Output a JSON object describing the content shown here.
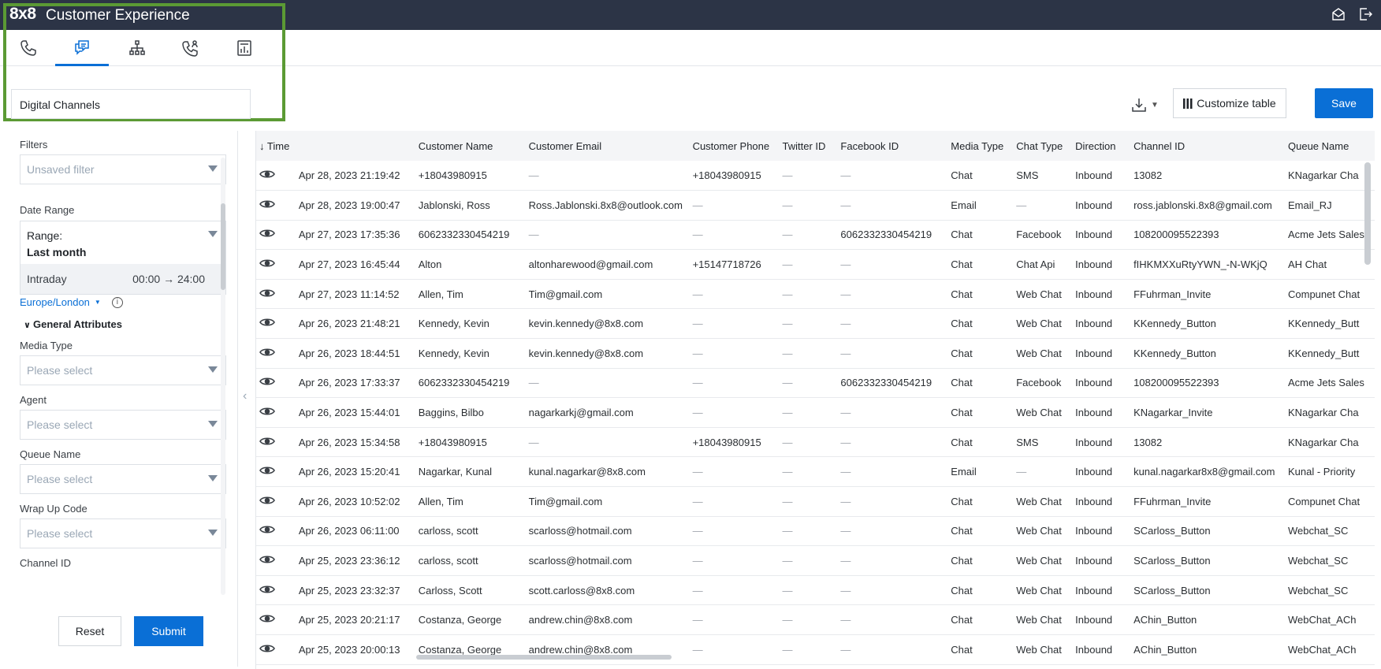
{
  "app": {
    "brand": "8x8",
    "title": "Customer Experience"
  },
  "nav_tabs": [
    {
      "icon": "phone-icon",
      "active": false
    },
    {
      "icon": "chat-icon",
      "active": true
    },
    {
      "icon": "org-chart-icon",
      "active": false
    },
    {
      "icon": "phone-agent-icon",
      "active": false
    },
    {
      "icon": "report-icon",
      "active": false
    }
  ],
  "channel": {
    "selected": "Digital Channels"
  },
  "toolbar": {
    "customize_label": "Customize table",
    "save_label": "Save"
  },
  "filters": {
    "title": "Filters",
    "saved_filter_placeholder": "Unsaved filter",
    "date_range_label": "Date Range",
    "range_label": "Range:",
    "range_value": "Last month",
    "intraday_label": "Intraday",
    "intraday_times": "00:00 → 24:00",
    "timezone": "Europe/London",
    "general_attributes": "General Attributes",
    "fields": [
      {
        "label": "Media Type",
        "placeholder": "Please select"
      },
      {
        "label": "Agent",
        "placeholder": "Please select"
      },
      {
        "label": "Queue Name",
        "placeholder": "Please select"
      },
      {
        "label": "Wrap Up Code",
        "placeholder": "Please select"
      }
    ],
    "channel_id_label": "Channel ID",
    "reset_label": "Reset",
    "submit_label": "Submit"
  },
  "table": {
    "columns": [
      "Time",
      "Customer Name",
      "Customer Email",
      "Customer Phone",
      "Twitter ID",
      "Facebook ID",
      "Media Type",
      "Chat Type",
      "Direction",
      "Channel ID",
      "Queue Name"
    ],
    "rows": [
      [
        "Apr 28, 2023 21:19:42",
        "+18043980915",
        "—",
        "+18043980915",
        "—",
        "—",
        "Chat",
        "SMS",
        "Inbound",
        "13082",
        "KNagarkar Cha"
      ],
      [
        "Apr 28, 2023 19:00:47",
        "Jablonski, Ross",
        "Ross.Jablonski.8x8@outlook.com",
        "—",
        "—",
        "—",
        "Email",
        "—",
        "Inbound",
        "ross.jablonski.8x8@gmail.com",
        "Email_RJ"
      ],
      [
        "Apr 27, 2023 17:35:36",
        "6062332330454219",
        "—",
        "—",
        "—",
        "6062332330454219",
        "Chat",
        "Facebook",
        "Inbound",
        "108200095522393",
        "Acme Jets Sales"
      ],
      [
        "Apr 27, 2023 16:45:44",
        "Alton",
        "altonharewood@gmail.com",
        "+15147718726",
        "—",
        "—",
        "Chat",
        "Chat Api",
        "Inbound",
        "fIHKMXXuRtyYWN_-N-WKjQ",
        "AH Chat"
      ],
      [
        "Apr 27, 2023 11:14:52",
        "Allen, Tim",
        "Tim@gmail.com",
        "—",
        "—",
        "—",
        "Chat",
        "Web Chat",
        "Inbound",
        "FFuhrman_Invite",
        "Compunet Chat"
      ],
      [
        "Apr 26, 2023 21:48:21",
        "Kennedy, Kevin",
        "kevin.kennedy@8x8.com",
        "—",
        "—",
        "—",
        "Chat",
        "Web Chat",
        "Inbound",
        "KKennedy_Button",
        "KKennedy_Butt"
      ],
      [
        "Apr 26, 2023 18:44:51",
        "Kennedy, Kevin",
        "kevin.kennedy@8x8.com",
        "—",
        "—",
        "—",
        "Chat",
        "Web Chat",
        "Inbound",
        "KKennedy_Button",
        "KKennedy_Butt"
      ],
      [
        "Apr 26, 2023 17:33:37",
        "6062332330454219",
        "—",
        "—",
        "—",
        "6062332330454219",
        "Chat",
        "Facebook",
        "Inbound",
        "108200095522393",
        "Acme Jets Sales"
      ],
      [
        "Apr 26, 2023 15:44:01",
        "Baggins, Bilbo",
        "nagarkarkj@gmail.com",
        "—",
        "—",
        "—",
        "Chat",
        "Web Chat",
        "Inbound",
        "KNagarkar_Invite",
        "KNagarkar Cha"
      ],
      [
        "Apr 26, 2023 15:34:58",
        "+18043980915",
        "—",
        "+18043980915",
        "—",
        "—",
        "Chat",
        "SMS",
        "Inbound",
        "13082",
        "KNagarkar Cha"
      ],
      [
        "Apr 26, 2023 15:20:41",
        "Nagarkar, Kunal",
        "kunal.nagarkar@8x8.com",
        "—",
        "—",
        "—",
        "Email",
        "—",
        "Inbound",
        "kunal.nagarkar8x8@gmail.com",
        "Kunal - Priority"
      ],
      [
        "Apr 26, 2023 10:52:02",
        "Allen, Tim",
        "Tim@gmail.com",
        "—",
        "—",
        "—",
        "Chat",
        "Web Chat",
        "Inbound",
        "FFuhrman_Invite",
        "Compunet Chat"
      ],
      [
        "Apr 26, 2023 06:11:00",
        "carloss, scott",
        "scarloss@hotmail.com",
        "—",
        "—",
        "—",
        "Chat",
        "Web Chat",
        "Inbound",
        "SCarloss_Button",
        "Webchat_SC"
      ],
      [
        "Apr 25, 2023 23:36:12",
        "carloss, scott",
        "scarloss@hotmail.com",
        "—",
        "—",
        "—",
        "Chat",
        "Web Chat",
        "Inbound",
        "SCarloss_Button",
        "Webchat_SC"
      ],
      [
        "Apr 25, 2023 23:32:37",
        "Carloss, Scott",
        "scott.carloss@8x8.com",
        "—",
        "—",
        "—",
        "Chat",
        "Web Chat",
        "Inbound",
        "SCarloss_Button",
        "Webchat_SC"
      ],
      [
        "Apr 25, 2023 20:21:17",
        "Costanza, George",
        "andrew.chin@8x8.com",
        "—",
        "—",
        "—",
        "Chat",
        "Web Chat",
        "Inbound",
        "AChin_Button",
        "WebChat_ACh"
      ],
      [
        "Apr 25, 2023 20:00:13",
        "Costanza, George",
        "andrew.chin@8x8.com",
        "—",
        "—",
        "—",
        "Chat",
        "Web Chat",
        "Inbound",
        "AChin_Button",
        "WebChat_ACh"
      ]
    ]
  }
}
